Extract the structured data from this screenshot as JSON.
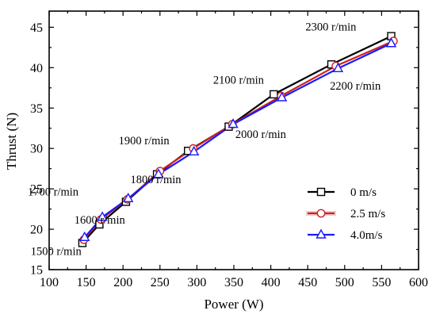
{
  "chart_data": {
    "type": "line",
    "xlabel": "Power (W)",
    "ylabel": "Thrust (N)",
    "xlim": [
      100,
      600
    ],
    "ylim": [
      15,
      47
    ],
    "x_ticks": [
      100,
      150,
      200,
      250,
      300,
      350,
      400,
      450,
      500,
      550,
      600
    ],
    "y_ticks": [
      15,
      20,
      25,
      30,
      35,
      40,
      45
    ],
    "grid": false,
    "legend_position": "bottom-right",
    "series": [
      {
        "name": "0 m/s",
        "color": "#000000",
        "marker": "square",
        "x": [
          145,
          168,
          204,
          246,
          288,
          343,
          404,
          482,
          563
        ],
        "y": [
          18.3,
          20.6,
          23.4,
          26.8,
          29.7,
          32.7,
          36.7,
          40.4,
          43.9
        ]
      },
      {
        "name": "2.5 m/s",
        "color": "#cc2222",
        "marker": "circle",
        "x": [
          147,
          170,
          206,
          250,
          295,
          348,
          414,
          488,
          566
        ],
        "y": [
          18.7,
          21.2,
          23.7,
          27.2,
          30.0,
          33.0,
          36.5,
          40.2,
          43.3
        ]
      },
      {
        "name": "4.0m/s",
        "color": "#1a1aff",
        "marker": "triangle",
        "x": [
          148,
          172,
          207,
          248,
          296,
          349,
          415,
          491,
          563
        ],
        "y": [
          19.0,
          21.5,
          23.8,
          26.8,
          29.6,
          33.0,
          36.3,
          39.9,
          43.0
        ]
      }
    ],
    "annotations": [
      {
        "text": "1500 r/min",
        "x": 75,
        "y": 16.8
      },
      {
        "text": "1600 r/min",
        "x": 134,
        "y": 20.7
      },
      {
        "text": "1700 r/min",
        "x": 71,
        "y": 24.2
      },
      {
        "text": "1800 r/min",
        "x": 210,
        "y": 25.7
      },
      {
        "text": "1900 r/min",
        "x": 194,
        "y": 30.5
      },
      {
        "text": "2000 r/min",
        "x": 352,
        "y": 31.3
      },
      {
        "text": "2100 r/min",
        "x": 322,
        "y": 38.0
      },
      {
        "text": "2200 r/min",
        "x": 480,
        "y": 37.3
      },
      {
        "text": "2300 r/min",
        "x": 447,
        "y": 44.6
      }
    ]
  }
}
